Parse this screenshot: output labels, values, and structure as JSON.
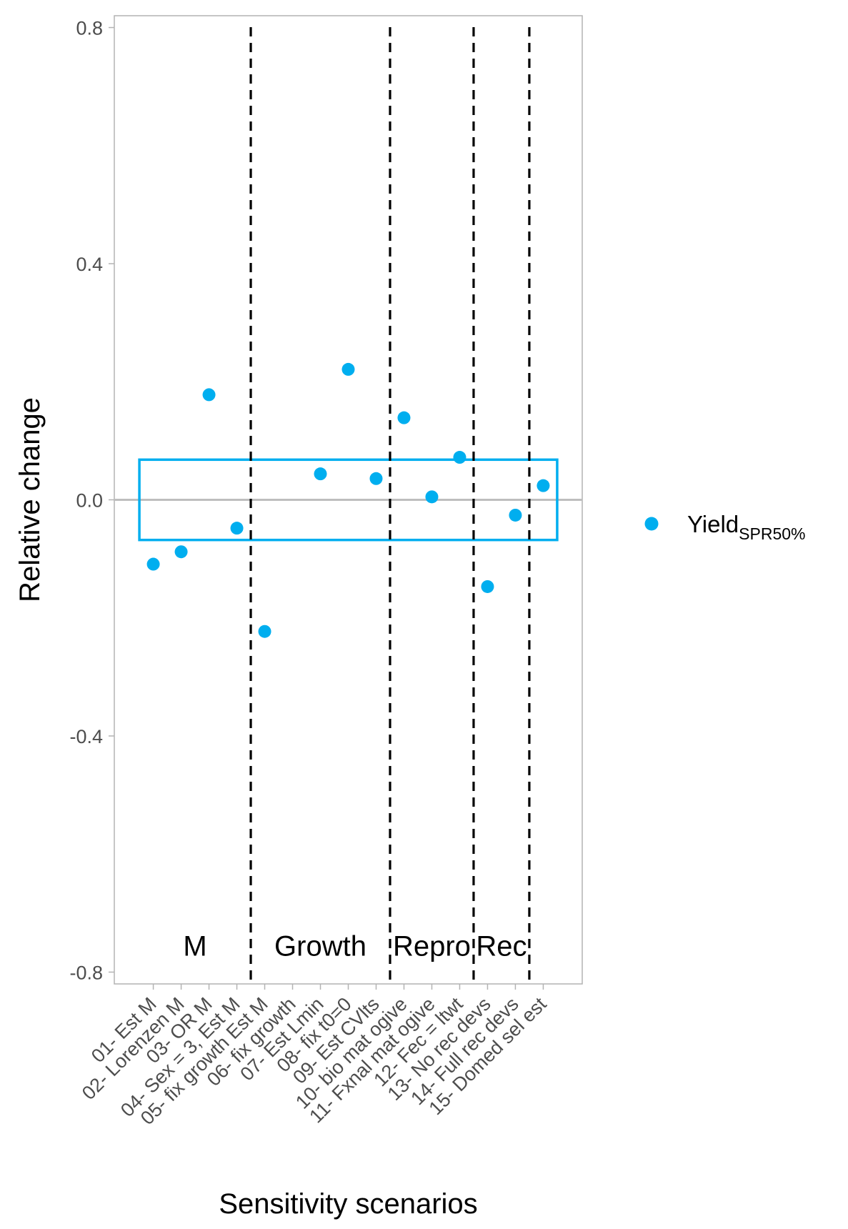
{
  "chart_data": {
    "type": "scatter",
    "xlabel": "Sensitivity scenarios",
    "ylabel": "Relative change",
    "ylim": [
      -0.82,
      0.82
    ],
    "yticks": [
      {
        "value": -0.8,
        "label": "-0.8"
      },
      {
        "value": -0.4,
        "label": "-0.4"
      },
      {
        "value": 0.0,
        "label": "0.0"
      },
      {
        "value": 0.4,
        "label": "0.4"
      },
      {
        "value": 0.8,
        "label": "0.8"
      }
    ],
    "categories": [
      "01- Est M",
      "02- Lorenzen M",
      "03- OR M",
      "04- Sex = 3, Est M",
      "05- fix growth Est M",
      "06- fix growth",
      "07- Est Lmin",
      "08- fix t0=0",
      "09- Est CVlts",
      "10- bio mat ogive",
      "11- Fxnal mat ogive",
      "12- Fec = ltwt",
      "13- No rec devs",
      "14- Full rec devs",
      "15- Domed sel est"
    ],
    "series": [
      {
        "name_main": "Yield",
        "name_sub": "SPR50%",
        "color": "#00AEEF",
        "values": [
          -0.109,
          -0.088,
          0.178,
          -0.048,
          -0.223,
          null,
          0.044,
          0.221,
          0.036,
          0.139,
          0.005,
          0.072,
          -0.147,
          -0.026,
          0.024
        ]
      }
    ],
    "reference_line": {
      "y": 0.0,
      "color": "#BEBEBE"
    },
    "band": {
      "ymin": -0.068,
      "ymax": 0.068,
      "color": "#00AEEF"
    },
    "dividers": [
      4.5,
      9.5,
      12.5,
      14.5
    ],
    "groups": [
      {
        "label": "M",
        "center": 2.5
      },
      {
        "label": "Growth",
        "center": 7.0
      },
      {
        "label": "Repro",
        "center": 11.0
      },
      {
        "label": "Rec",
        "center": 13.5
      }
    ],
    "group_label_y": -0.755,
    "grid": false,
    "legend_position": "right"
  }
}
